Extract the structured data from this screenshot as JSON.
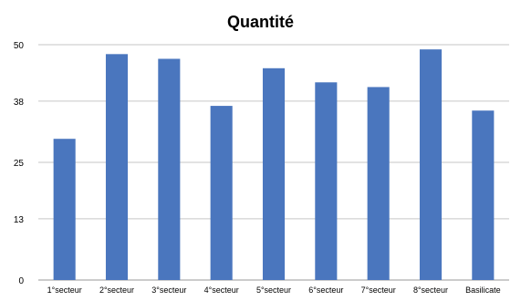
{
  "chart_data": {
    "type": "bar",
    "title": "Quantité",
    "categories": [
      "1°secteur",
      "2°secteur",
      "3°secteur",
      "4°secteur",
      "5°secteur",
      "6°secteur",
      "7°secteur",
      "8°secteur",
      "Basilicate"
    ],
    "values": [
      30,
      48,
      47,
      37,
      45,
      42,
      41,
      49,
      36
    ],
    "yticks": [
      "0",
      "13",
      "25",
      "38",
      "50"
    ],
    "ylim": [
      0,
      50
    ],
    "xlabel": "",
    "ylabel": "",
    "grid": true,
    "legend": "none",
    "colors": {
      "bar": "#4a76be",
      "grid": "#c6c6c6",
      "axis": "#9a9a9a",
      "text": "#000000"
    }
  }
}
